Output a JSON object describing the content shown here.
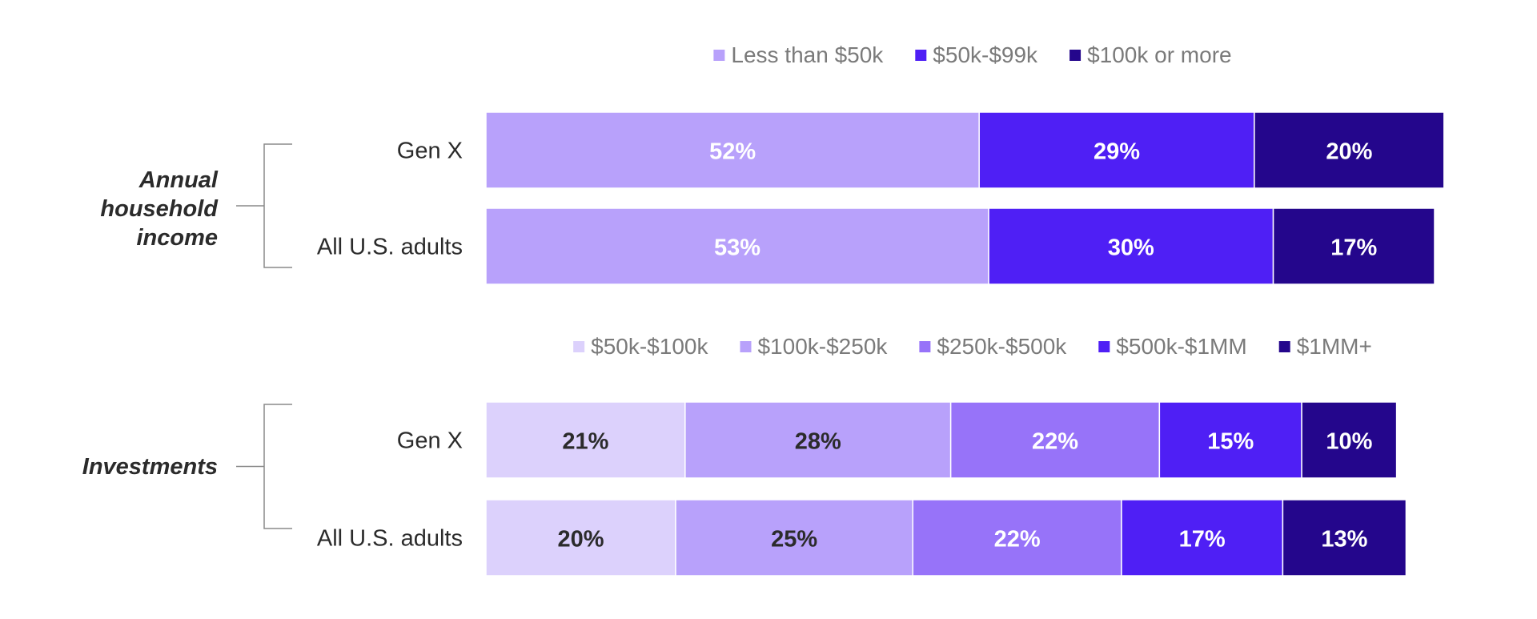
{
  "chart_data": [
    {
      "type": "bar",
      "orientation": "horizontal",
      "stacked": true,
      "group_label_lines": [
        "Annual",
        "household",
        "income"
      ],
      "categories": [
        "Gen X",
        "All U.S. adults"
      ],
      "series": [
        {
          "name": "Less than $50k",
          "values": [
            52,
            53
          ],
          "labels": [
            "52%",
            "53%"
          ],
          "color": "#b8a1fb",
          "label_color": "#ffffff"
        },
        {
          "name": "$50k-$99k",
          "values": [
            29,
            30
          ],
          "labels": [
            "29%",
            "30%"
          ],
          "color": "#4f1ff5",
          "label_color": "#ffffff"
        },
        {
          "name": "$100k or more",
          "values": [
            20,
            17
          ],
          "labels": [
            "20%",
            "17%"
          ],
          "color": "#24068c",
          "label_color": "#ffffff"
        }
      ],
      "legend_position": "top",
      "xlim": [
        0,
        100
      ],
      "grid": false
    },
    {
      "type": "bar",
      "orientation": "horizontal",
      "stacked": true,
      "group_label_lines": [
        "Investments"
      ],
      "categories": [
        "Gen X",
        "All U.S. adults"
      ],
      "series": [
        {
          "name": "$50k-$100k",
          "values": [
            21,
            20
          ],
          "labels": [
            "21%",
            "20%"
          ],
          "color": "#dcd1fc",
          "label_color": "#2b2b2b"
        },
        {
          "name": "$100k-$250k",
          "values": [
            28,
            25
          ],
          "labels": [
            "28%",
            "25%"
          ],
          "color": "#b8a1fb",
          "label_color": "#2b2b2b"
        },
        {
          "name": "$250k-$500k",
          "values": [
            22,
            22
          ],
          "labels": [
            "22%",
            "22%"
          ],
          "color": "#9773f9",
          "label_color": "#ffffff"
        },
        {
          "name": "$500k-$1MM",
          "values": [
            15,
            17
          ],
          "labels": [
            "15%",
            "17%"
          ],
          "color": "#4f1ff5",
          "label_color": "#ffffff"
        },
        {
          "name": "$1MM+",
          "values": [
            10,
            13
          ],
          "labels": [
            "10%",
            "13%"
          ],
          "color": "#24068c",
          "label_color": "#ffffff"
        }
      ],
      "legend_position": "top",
      "xlim": [
        0,
        100
      ],
      "grid": false
    }
  ]
}
